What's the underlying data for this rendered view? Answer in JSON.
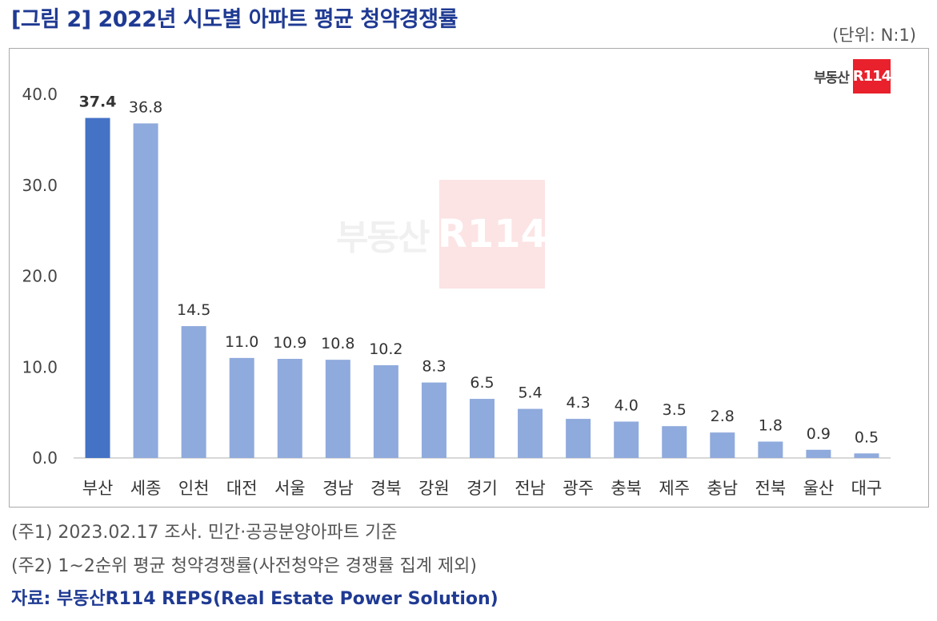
{
  "title": "[그림 2] 2022년 시도별 아파트 평균 청약경쟁률",
  "unit": "(단위: N:1)",
  "logo": {
    "text": "부동산",
    "box": "R114"
  },
  "colors": {
    "highlight": "#4472c4",
    "bar": "#8faadc",
    "title": "#1f3a93",
    "logo": "#e8212c"
  },
  "chart_data": {
    "type": "bar",
    "categories": [
      "부산",
      "세종",
      "인천",
      "대전",
      "서울",
      "경남",
      "경북",
      "강원",
      "경기",
      "전남",
      "광주",
      "충북",
      "제주",
      "충남",
      "전북",
      "울산",
      "대구"
    ],
    "values": [
      37.4,
      36.8,
      14.5,
      11.0,
      10.9,
      10.8,
      10.2,
      8.3,
      6.5,
      5.4,
      4.3,
      4.0,
      3.5,
      2.8,
      1.8,
      0.9,
      0.5
    ],
    "value_labels": [
      "37.4",
      "36.8",
      "14.5",
      "11.0",
      "10.9",
      "10.8",
      "10.2",
      "8.3",
      "6.5",
      "5.4",
      "4.3",
      "4.0",
      "3.5",
      "2.8",
      "1.8",
      "0.9",
      "0.5"
    ],
    "highlight_index": 0,
    "ylim": [
      0,
      40
    ],
    "yticks": [
      0,
      10,
      20,
      30,
      40
    ],
    "ytick_labels": [
      "0.0",
      "10.0",
      "20.0",
      "30.0",
      "40.0"
    ],
    "grid": false,
    "legend": "none"
  },
  "notes": [
    "(주1) 2023.02.17 조사. 민간·공공분양아파트 기준",
    "(주2) 1~2순위 평균 청약경쟁률(사전청약은 경쟁률 집계 제외)"
  ],
  "source": "자료: 부동산R114 REPS(Real Estate Power Solution)"
}
